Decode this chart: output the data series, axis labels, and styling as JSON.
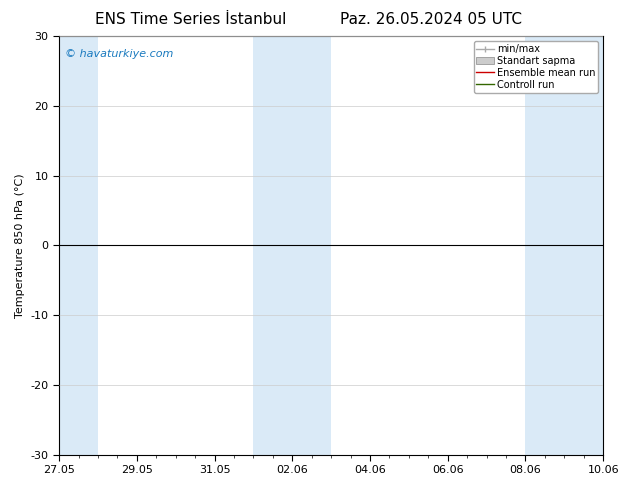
{
  "title_left": "ENS Time Series İstanbul",
  "title_right": "Paz. 26.05.2024 05 UTC",
  "ylabel": "Temperature 850 hPa (°C)",
  "watermark": "© havaturkiye.com",
  "watermark_color": "#1a7abf",
  "ylim": [
    -30,
    30
  ],
  "yticks": [
    -30,
    -20,
    -10,
    0,
    10,
    20,
    30
  ],
  "xtick_labels": [
    "27.05",
    "29.05",
    "31.05",
    "02.06",
    "04.06",
    "06.06",
    "08.06",
    "10.06"
  ],
  "background_color": "#ffffff",
  "plot_bg_color": "#ffffff",
  "band_color": "#daeaf7",
  "zero_line_color": "#000000",
  "control_run_color": "#336600",
  "ensemble_mean_color": "#cc0000",
  "minmax_color": "#aaaaaa",
  "standart_color": "#cccccc",
  "legend_labels": [
    "min/max",
    "Standart sapma",
    "Ensemble mean run",
    "Controll run"
  ],
  "title_fontsize": 11,
  "axis_label_fontsize": 8,
  "tick_fontsize": 8,
  "legend_fontsize": 7,
  "watermark_fontsize": 8
}
